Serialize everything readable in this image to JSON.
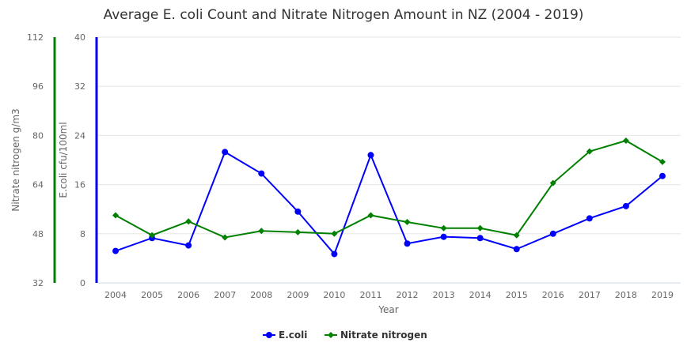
{
  "chart_data": {
    "type": "line",
    "title": "Average E. coli Count and Nitrate Nitrogen Amount in NZ (2004 - 2019)",
    "xlabel": "Year",
    "categories": [
      "2004",
      "2005",
      "2006",
      "2007",
      "2008",
      "2009",
      "2010",
      "2011",
      "2012",
      "2013",
      "2014",
      "2015",
      "2016",
      "2017",
      "2018",
      "2019"
    ],
    "y_axes": [
      {
        "id": "nitrate",
        "title": "Nitrate nitrogen g/m3",
        "range": [
          32,
          112
        ],
        "ticks": [
          "32",
          "48",
          "64",
          "80",
          "96",
          "112"
        ],
        "color": "#008000"
      },
      {
        "id": "ecoli",
        "title": "E.coli cfu/100ml",
        "range": [
          0,
          40
        ],
        "ticks": [
          "0",
          "8",
          "16",
          "24",
          "32",
          "40"
        ],
        "color": "#0000ff"
      }
    ],
    "series": [
      {
        "name": "E.coli",
        "axis": "ecoli",
        "color": "#0000ff",
        "marker": "circle",
        "values": [
          5.2,
          7.3,
          6.1,
          21.3,
          17.8,
          11.6,
          4.7,
          20.8,
          6.4,
          7.5,
          7.3,
          5.5,
          8.0,
          10.5,
          12.5,
          17.4
        ]
      },
      {
        "name": "Nitrate nitrogen",
        "axis": "nitrate",
        "color": "#008000",
        "marker": "diamond",
        "values": [
          54.0,
          47.5,
          52.0,
          46.8,
          48.9,
          48.5,
          48.0,
          54.0,
          51.8,
          49.8,
          49.8,
          47.5,
          64.5,
          74.8,
          78.3,
          71.4
        ]
      }
    ],
    "legend": "bottom-center",
    "grid": true
  }
}
